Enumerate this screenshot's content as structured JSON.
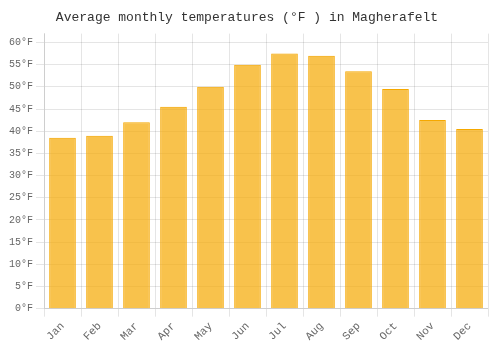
{
  "chart_data": {
    "type": "bar",
    "title": "Average monthly temperatures (°F ) in Magherafelt",
    "categories": [
      "Jan",
      "Feb",
      "Mar",
      "Apr",
      "May",
      "Jun",
      "Jul",
      "Aug",
      "Sep",
      "Oct",
      "Nov",
      "Dec"
    ],
    "values": [
      38.5,
      39.0,
      42.0,
      45.5,
      50.0,
      55.0,
      57.5,
      57.0,
      53.5,
      49.5,
      42.5,
      40.5
    ],
    "color": "#F5A800",
    "ylim": [
      0,
      62
    ],
    "yticks": [
      {
        "value": 0,
        "label": "0°F"
      },
      {
        "value": 5,
        "label": "5°F"
      },
      {
        "value": 10,
        "label": "10°F"
      },
      {
        "value": 15,
        "label": "15°F"
      },
      {
        "value": 20,
        "label": "20°F"
      },
      {
        "value": 25,
        "label": "25°F"
      },
      {
        "value": 30,
        "label": "30°F"
      },
      {
        "value": 35,
        "label": "35°F"
      },
      {
        "value": 40,
        "label": "40°F"
      },
      {
        "value": 45,
        "label": "45°F"
      },
      {
        "value": 50,
        "label": "50°F"
      },
      {
        "value": 55,
        "label": "55°F"
      },
      {
        "value": 60,
        "label": "60°F"
      }
    ],
    "grid": true
  }
}
